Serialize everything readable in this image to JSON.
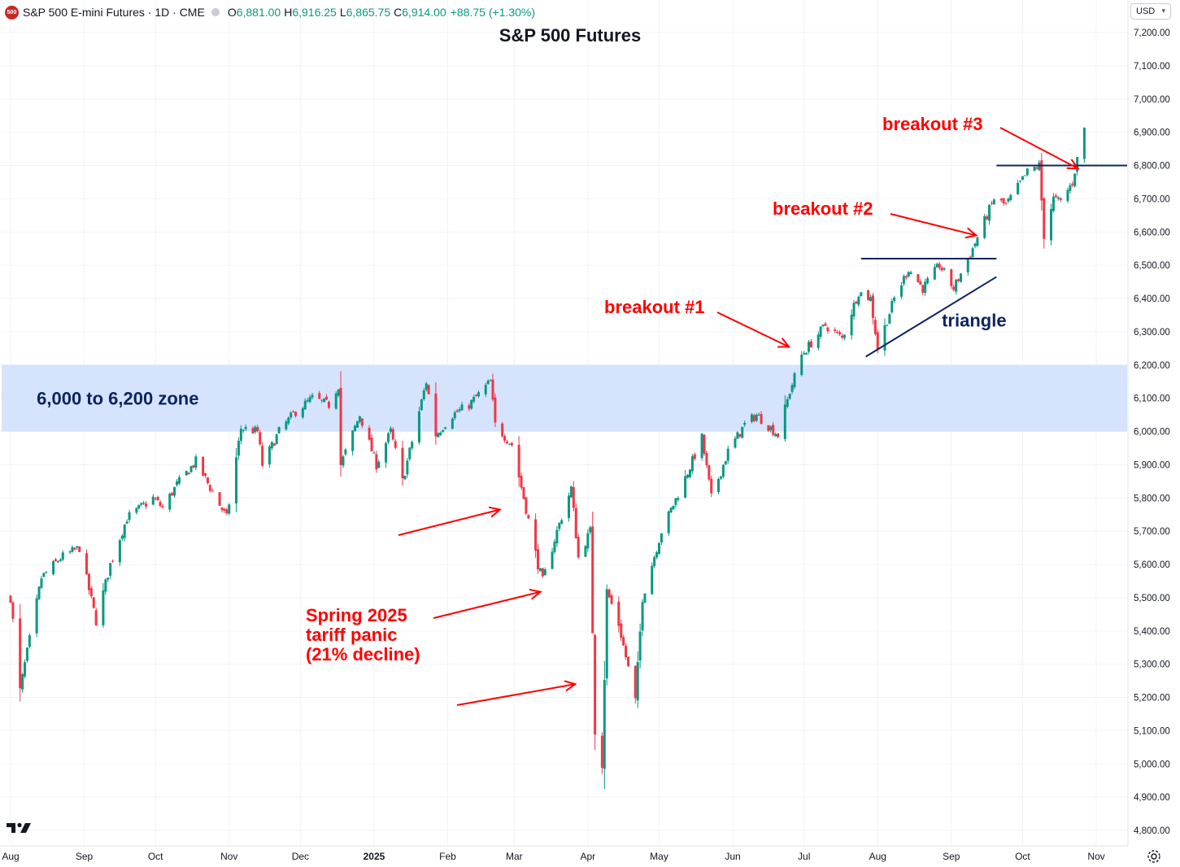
{
  "header": {
    "logo_text": "500",
    "symbol": "S&P 500 E-mini Futures · 1D · CME",
    "open_label": "O",
    "open": "6,881.00",
    "high_label": "H",
    "high": "6,916.25",
    "low_label": "L",
    "low": "6,865.75",
    "close_label": "C",
    "close": "6,914.00",
    "change": "+88.75 (+1.30%)"
  },
  "currency": "USD",
  "colors": {
    "up": "#089981",
    "down": "#f23645",
    "annotation": "#ff0000",
    "navy": "#0c2461",
    "zone": "#d5e3fd"
  },
  "icons": [
    "tradingview-logo-icon",
    "settings-icon",
    "chevron-down-icon"
  ],
  "chart_data": {
    "type": "candlestick",
    "title": "S&P 500 Futures",
    "x_axis": {
      "tick_labels": [
        "Aug",
        "Sep",
        "Oct",
        "Nov",
        "Dec",
        "2025",
        "Feb",
        "Mar",
        "Apr",
        "May",
        "Jun",
        "Jul",
        "Aug",
        "Sep",
        "Oct",
        "Nov"
      ],
      "tick_dates": [
        "2024-08-01",
        "2024-09-01",
        "2024-10-01",
        "2024-11-01",
        "2024-12-01",
        "2025-01-01",
        "2025-02-01",
        "2025-03-01",
        "2025-04-01",
        "2025-05-01",
        "2025-06-01",
        "2025-07-01",
        "2025-08-01",
        "2025-09-01",
        "2025-10-01",
        "2025-11-01"
      ]
    },
    "y_axis": {
      "ylim": [
        4775,
        7240
      ],
      "tick_values": [
        4800,
        4900,
        5000,
        5100,
        5200,
        5300,
        5400,
        5500,
        5600,
        5700,
        5800,
        5900,
        6000,
        6100,
        6200,
        6300,
        6400,
        6500,
        6600,
        6700,
        6800,
        6900,
        7000,
        7100,
        7200
      ],
      "tick_labels": [
        "4,800.00",
        "4,900.00",
        "5,000.00",
        "5,100.00",
        "5,200.00",
        "5,300.00",
        "5,400.00",
        "5,500.00",
        "5,600.00",
        "5,700.00",
        "5,800.00",
        "5,900.00",
        "6,000.00",
        "6,100.00",
        "6,200.00",
        "6,300.00",
        "6,400.00",
        "6,500.00",
        "6,600.00",
        "6,700.00",
        "6,800.00",
        "6,900.00",
        "7,000.00",
        "7,100.00",
        "7,200.00"
      ]
    },
    "grid": true,
    "closes_path": [
      [
        "2024-08-01",
        5500
      ],
      [
        "2024-08-05",
        5220
      ],
      [
        "2024-08-07",
        5300
      ],
      [
        "2024-08-14",
        5560
      ],
      [
        "2024-08-22",
        5620
      ],
      [
        "2024-08-30",
        5650
      ],
      [
        "2024-09-06",
        5430
      ],
      [
        "2024-09-12",
        5600
      ],
      [
        "2024-09-19",
        5740
      ],
      [
        "2024-09-30",
        5800
      ],
      [
        "2024-10-04",
        5770
      ],
      [
        "2024-10-10",
        5840
      ],
      [
        "2024-10-18",
        5910
      ],
      [
        "2024-10-31",
        5740
      ],
      [
        "2024-11-06",
        6010
      ],
      [
        "2024-11-13",
        6000
      ],
      [
        "2024-11-15",
        5900
      ],
      [
        "2024-11-22",
        6000
      ],
      [
        "2024-11-29",
        6060
      ],
      [
        "2024-12-06",
        6100
      ],
      [
        "2024-12-13",
        6080
      ],
      [
        "2024-12-17",
        6140
      ],
      [
        "2024-12-18",
        5900
      ],
      [
        "2024-12-26",
        6050
      ],
      [
        "2025-01-02",
        5900
      ],
      [
        "2025-01-08",
        6000
      ],
      [
        "2025-01-13",
        5850
      ],
      [
        "2025-01-23",
        6150
      ],
      [
        "2025-01-27",
        5990
      ],
      [
        "2025-02-03",
        6050
      ],
      [
        "2025-02-10",
        6080
      ],
      [
        "2025-02-19",
        6150
      ],
      [
        "2025-02-21",
        6020
      ],
      [
        "2025-02-28",
        5960
      ],
      [
        "2025-03-05",
        5800
      ],
      [
        "2025-03-11",
        5600
      ],
      [
        "2025-03-13",
        5550
      ],
      [
        "2025-03-19",
        5700
      ],
      [
        "2025-03-25",
        5830
      ],
      [
        "2025-03-28",
        5620
      ],
      [
        "2025-04-02",
        5700
      ],
      [
        "2025-04-04",
        5100
      ],
      [
        "2025-04-07",
        5000
      ],
      [
        "2025-04-09",
        5520
      ],
      [
        "2025-04-14",
        5420
      ],
      [
        "2025-04-21",
        5190
      ],
      [
        "2025-04-24",
        5500
      ],
      [
        "2025-05-02",
        5700
      ],
      [
        "2025-05-12",
        5860
      ],
      [
        "2025-05-19",
        5980
      ],
      [
        "2025-05-23",
        5800
      ],
      [
        "2025-05-30",
        5940
      ],
      [
        "2025-06-06",
        6020
      ],
      [
        "2025-06-11",
        6050
      ],
      [
        "2025-06-20",
        5990
      ],
      [
        "2025-06-25",
        6120
      ],
      [
        "2025-06-30",
        6230
      ],
      [
        "2025-07-10",
        6320
      ],
      [
        "2025-07-17",
        6280
      ],
      [
        "2025-07-24",
        6420
      ],
      [
        "2025-07-29",
        6400
      ],
      [
        "2025-08-01",
        6250
      ],
      [
        "2025-08-08",
        6400
      ],
      [
        "2025-08-14",
        6490
      ],
      [
        "2025-08-20",
        6430
      ],
      [
        "2025-08-27",
        6500
      ],
      [
        "2025-09-02",
        6430
      ],
      [
        "2025-09-10",
        6550
      ],
      [
        "2025-09-19",
        6700
      ],
      [
        "2025-09-24",
        6680
      ],
      [
        "2025-10-03",
        6780
      ],
      [
        "2025-10-08",
        6800
      ],
      [
        "2025-10-10",
        6590
      ],
      [
        "2025-10-14",
        6700
      ],
      [
        "2025-10-17",
        6690
      ],
      [
        "2025-10-22",
        6750
      ],
      [
        "2025-10-24",
        6820
      ],
      [
        "2025-10-27",
        6914
      ]
    ],
    "zone": {
      "from": 6000,
      "to": 6200,
      "label": "6,000 to 6,200 zone"
    },
    "lines": [
      {
        "label": "",
        "value": 6800,
        "from": "2025-09-20",
        "to": "2025-11-15"
      },
      {
        "label": "",
        "value": 6520,
        "from": "2025-07-25",
        "to": "2025-09-20"
      },
      {
        "label": "triangle",
        "from": [
          "2025-07-27",
          6225
        ],
        "to": [
          "2025-09-20",
          6465
        ]
      }
    ],
    "annotations": [
      {
        "text": "breakout #1",
        "point": [
          "2025-06-24",
          6225
        ]
      },
      {
        "text": "breakout #2",
        "point": [
          "2025-09-06",
          6580
        ]
      },
      {
        "text": "breakout #3",
        "point": [
          "2025-10-23",
          6825
        ]
      },
      {
        "text": "Spring 2025",
        "point": [
          "2025-02-22",
          5770
        ]
      },
      {
        "text": "tariff panic",
        "point": [
          "2025-03-11",
          5520
        ]
      },
      {
        "text": "(21% decline)",
        "point": [
          "2025-03-26",
          5245
        ]
      }
    ]
  }
}
